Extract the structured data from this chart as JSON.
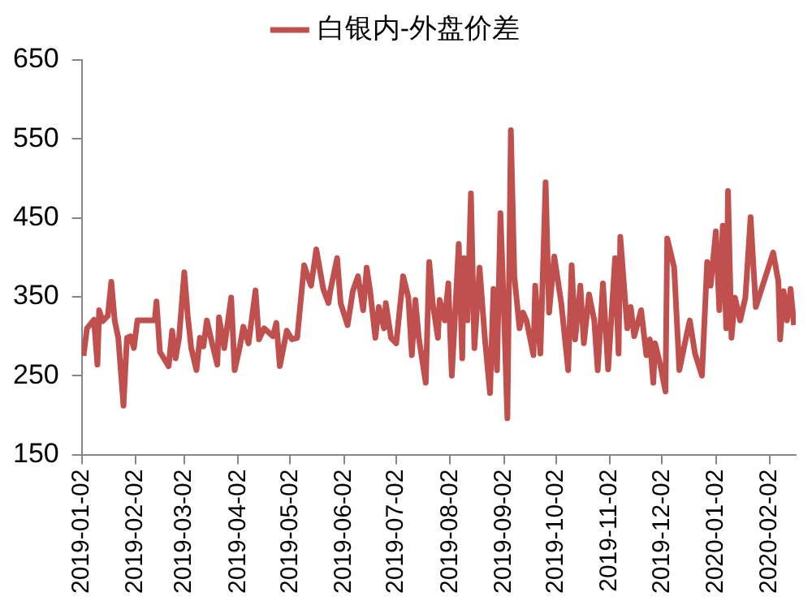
{
  "chart_data": {
    "type": "line",
    "legend": "top",
    "x": [
      "2019-01-03",
      "2019-01-05",
      "2019-01-09",
      "2019-01-11",
      "2019-01-12",
      "2019-01-14",
      "2019-01-17",
      "2019-01-19",
      "2019-01-21",
      "2019-01-23",
      "2019-01-26",
      "2019-01-28",
      "2019-01-30",
      "2019-02-01",
      "2019-02-03",
      "2019-02-13",
      "2019-02-14",
      "2019-02-16",
      "2019-02-21",
      "2019-02-23",
      "2019-02-25",
      "2019-02-27",
      "2019-03-02",
      "2019-03-04",
      "2019-03-06",
      "2019-03-09",
      "2019-03-11",
      "2019-03-13",
      "2019-03-15",
      "2019-03-18",
      "2019-03-21",
      "2019-03-22",
      "2019-03-25",
      "2019-03-29",
      "2019-03-31",
      "2019-04-03",
      "2019-04-05",
      "2019-04-08",
      "2019-04-12",
      "2019-04-14",
      "2019-04-17",
      "2019-04-22",
      "2019-04-24",
      "2019-04-26",
      "2019-04-30",
      "2019-05-03",
      "2019-05-06",
      "2019-05-10",
      "2019-05-13",
      "2019-05-14",
      "2019-05-17",
      "2019-05-21",
      "2019-05-24",
      "2019-05-25",
      "2019-05-29",
      "2019-05-31",
      "2019-06-04",
      "2019-06-07",
      "2019-06-10",
      "2019-06-13",
      "2019-06-15",
      "2019-06-17",
      "2019-06-20",
      "2019-06-22",
      "2019-06-25",
      "2019-06-26",
      "2019-06-29",
      "2019-07-02",
      "2019-07-06",
      "2019-07-09",
      "2019-07-11",
      "2019-07-13",
      "2019-07-15",
      "2019-07-19",
      "2019-07-21",
      "2019-07-23",
      "2019-07-26",
      "2019-07-27",
      "2019-07-30",
      "2019-08-01",
      "2019-08-03",
      "2019-08-05",
      "2019-08-07",
      "2019-08-09",
      "2019-08-10",
      "2019-08-12",
      "2019-08-14",
      "2019-08-16",
      "2019-08-19",
      "2019-08-22",
      "2019-08-25",
      "2019-08-27",
      "2019-08-29",
      "2019-08-31",
      "2019-09-02",
      "2019-09-04",
      "2019-09-06",
      "2019-09-08",
      "2019-09-11",
      "2019-09-13",
      "2019-09-15",
      "2019-09-19",
      "2019-09-20",
      "2019-09-23",
      "2019-09-26",
      "2019-09-28",
      "2019-10-01",
      "2019-10-05",
      "2019-10-09",
      "2019-10-11",
      "2019-10-13",
      "2019-10-16",
      "2019-10-18",
      "2019-10-21",
      "2019-10-24",
      "2019-10-26",
      "2019-10-29",
      "2019-11-01",
      "2019-11-05",
      "2019-11-07",
      "2019-11-08",
      "2019-11-12",
      "2019-11-14",
      "2019-11-16",
      "2019-11-20",
      "2019-11-23",
      "2019-11-25",
      "2019-11-27",
      "2019-11-28",
      "2019-12-01",
      "2019-12-04",
      "2019-12-05",
      "2019-12-09",
      "2019-12-12",
      "2019-12-16",
      "2019-12-18",
      "2019-12-21",
      "2019-12-25",
      "2019-12-28",
      "2019-12-30",
      "2020-01-02",
      "2020-01-04",
      "2020-01-06",
      "2020-01-08",
      "2020-01-09",
      "2020-01-11",
      "2020-01-13",
      "2020-01-16",
      "2020-01-19",
      "2020-01-22",
      "2020-01-25",
      "2020-02-04",
      "2020-02-07",
      "2020-02-08",
      "2020-02-10",
      "2020-02-12",
      "2020-02-14",
      "2020-02-16"
    ],
    "series": [
      {
        "name": "白银内-外盘价差",
        "color": "#c0504d",
        "values": [
          275,
          310,
          321,
          264,
          333,
          319,
          326,
          369,
          319,
          298,
          212,
          298,
          300,
          285,
          320,
          320,
          344,
          280,
          262,
          307,
          272,
          298,
          381,
          326,
          285,
          257,
          298,
          287,
          320,
          291,
          264,
          324,
          285,
          349,
          257,
          287,
          312,
          291,
          358,
          296,
          310,
          300,
          317,
          262,
          307,
          296,
          298,
          390,
          370,
          364,
          410,
          360,
          342,
          357,
          399,
          342,
          314,
          357,
          376,
          333,
          387,
          357,
          298,
          337,
          310,
          342,
          298,
          291,
          376,
          349,
          276,
          346,
          298,
          241,
          394,
          342,
          298,
          346,
          320,
          367,
          250,
          333,
          417,
          272,
          399,
          320,
          481,
          285,
          387,
          298,
          228,
          360,
          257,
          456,
          333,
          196,
          561,
          376,
          310,
          330,
          320,
          276,
          364,
          278,
          495,
          330,
          401,
          342,
          257,
          390,
          296,
          364,
          291,
          353,
          320,
          257,
          367,
          258,
          399,
          278,
          426,
          310,
          337,
          300,
          333,
          276,
          296,
          241,
          291,
          264,
          230,
          424,
          387,
          257,
          300,
          320,
          278,
          250,
          394,
          364,
          433,
          333,
          440,
          310,
          484,
          298,
          349,
          320,
          349,
          451,
          337,
          406,
          369,
          296,
          357,
          320,
          360,
          314
        ]
      }
    ],
    "xlim": [
      "2019-01-02",
      "2020-02-17"
    ],
    "xticks": [
      "2019-01-02",
      "2019-02-02",
      "2019-03-02",
      "2019-04-02",
      "2019-05-02",
      "2019-06-02",
      "2019-07-02",
      "2019-08-02",
      "2019-09-02",
      "2019-10-02",
      "2019-11-02",
      "2019-12-02",
      "2020-01-02",
      "2020-02-02"
    ],
    "ylim": [
      150,
      650
    ],
    "yticks": [
      150,
      250,
      350,
      450,
      550,
      650
    ],
    "grid": false
  }
}
